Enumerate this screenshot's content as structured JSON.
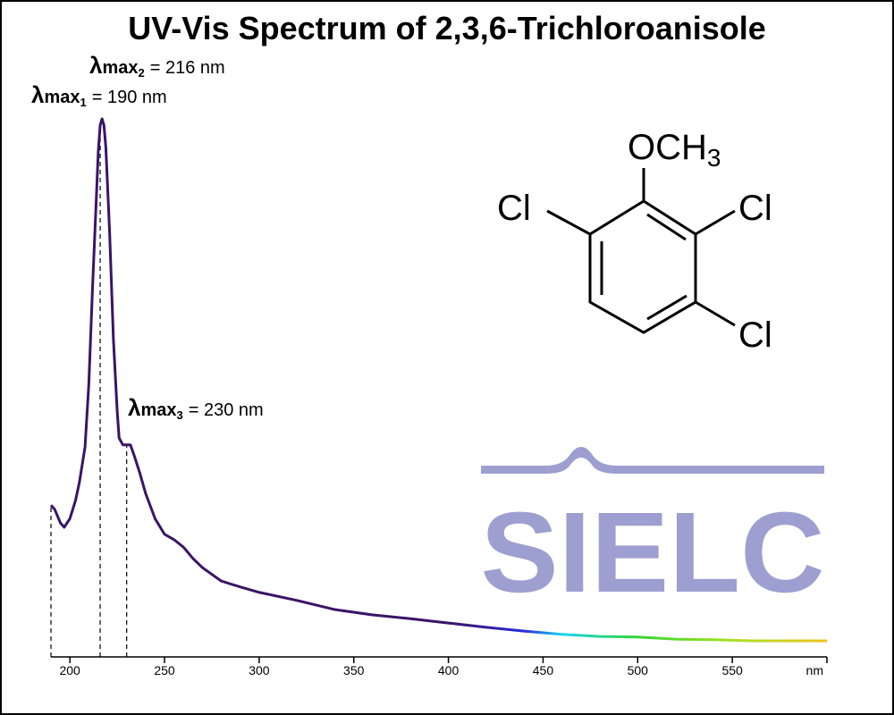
{
  "chart_data": {
    "type": "line",
    "title": "UV-Vis Spectrum of 2,3,6-Trichloroanisole",
    "x": [
      190,
      192,
      195,
      197,
      200,
      203,
      205,
      208,
      210,
      212,
      214,
      215,
      216,
      217,
      218,
      219,
      221,
      223,
      225,
      226,
      228,
      230,
      232,
      234,
      237,
      240,
      245,
      250,
      255,
      260,
      265,
      270,
      280,
      290,
      300,
      320,
      340,
      360,
      380,
      400,
      420,
      440,
      460,
      480,
      500,
      520,
      540,
      560,
      580,
      600
    ],
    "series": [
      {
        "values": [
          0.282,
          0.274,
          0.249,
          0.241,
          0.257,
          0.291,
          0.324,
          0.39,
          0.507,
          0.689,
          0.855,
          0.939,
          0.988,
          1.0,
          0.988,
          0.947,
          0.789,
          0.59,
          0.457,
          0.407,
          0.394,
          0.394,
          0.394,
          0.374,
          0.341,
          0.304,
          0.257,
          0.228,
          0.218,
          0.204,
          0.183,
          0.166,
          0.141,
          0.13,
          0.12,
          0.105,
          0.088,
          0.078,
          0.071,
          0.063,
          0.055,
          0.048,
          0.042,
          0.038,
          0.037,
          0.033,
          0.032,
          0.03,
          0.03,
          0.03
        ]
      }
    ],
    "line_gradient": [
      {
        "value": 400,
        "color": "#3a1466"
      },
      {
        "value": 440,
        "color": "#2a2ad8"
      },
      {
        "value": 460,
        "color": "#19d4f0"
      },
      {
        "value": 500,
        "color": "#33d633"
      },
      {
        "value": 550,
        "color": "#a8e020"
      },
      {
        "value": 600,
        "color": "#f0c020"
      }
    ],
    "xlim": [
      190,
      600
    ],
    "ylim": [
      0,
      1
    ],
    "xticks": [
      200,
      250,
      300,
      350,
      400,
      450,
      500,
      550,
      {
        "value": 600,
        "label": "nm"
      }
    ],
    "annotations": [
      {
        "symbol": "λ",
        "sub": "max",
        "index": "1",
        "text": "= 190 nm",
        "x": 190
      },
      {
        "symbol": "λ",
        "sub": "max",
        "index": "2",
        "text": "= 216 nm",
        "x": 216
      },
      {
        "symbol": "λ",
        "sub": "max",
        "index": "3",
        "text": "= 230 nm",
        "x": 230
      }
    ],
    "structure": {
      "top": {
        "main": "OCH",
        "sub": "3"
      },
      "left": "Cl",
      "right_top": "Cl",
      "right_bottom": "Cl"
    },
    "logo": "SIELC"
  }
}
